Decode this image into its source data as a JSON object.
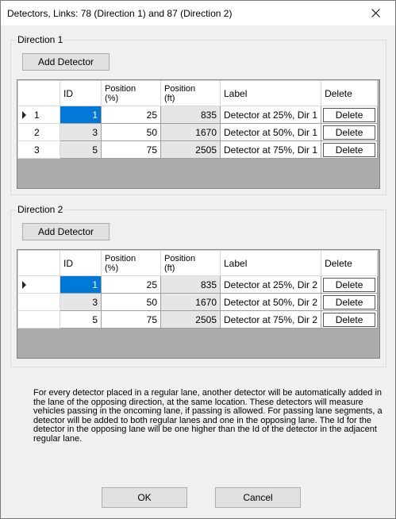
{
  "window": {
    "title": "Detectors, Links: 78 (Direction 1) and 87 (Direction 2)",
    "close_icon": "close-icon"
  },
  "direction1": {
    "group_label": "Direction 1",
    "add_button": "Add Detector",
    "columns": [
      "ID",
      "Position\n(%)",
      "Position\n(ft)",
      "Label",
      "Delete"
    ],
    "rows": [
      {
        "rownum": "1",
        "id": "1",
        "pos_pct": "25",
        "pos_ft": "835",
        "label": "Detector at 25%, Dir 1",
        "delete": "Delete"
      },
      {
        "rownum": "2",
        "id": "3",
        "pos_pct": "50",
        "pos_ft": "1670",
        "label": "Detector at 50%, Dir 1",
        "delete": "Delete"
      },
      {
        "rownum": "3",
        "id": "5",
        "pos_pct": "75",
        "pos_ft": "2505",
        "label": "Detector at 75%, Dir 1",
        "delete": "Delete"
      }
    ]
  },
  "direction2": {
    "group_label": "Direction 2",
    "add_button": "Add Detector",
    "columns": [
      "ID",
      "Position\n(%)",
      "Position\n(ft)",
      "Label",
      "Delete"
    ],
    "rows": [
      {
        "rownum": "",
        "id": "1",
        "pos_pct": "25",
        "pos_ft": "835",
        "label": "Detector at 25%, Dir 2",
        "delete": "Delete"
      },
      {
        "rownum": "",
        "id": "3",
        "pos_pct": "50",
        "pos_ft": "1670",
        "label": "Detector at 50%, Dir 2",
        "delete": "Delete"
      },
      {
        "rownum": "",
        "id": "5",
        "pos_pct": "75",
        "pos_ft": "2505",
        "label": "Detector at 75%, Dir 2",
        "delete": "Delete"
      }
    ]
  },
  "info_text": "For every detector placed in a regular lane, another detector will be automatically added in the lane of the opposing direction, at the same location.  These detectors will measure vehicles passing in the oncoming lane, if passing is allowed.  For passing lane segments, a detector will be added to both regular lanes and one in the opposing lane.  The Id for the detector in the opposing lane will be one higher than the Id of the detector in the adjacent regular lane.",
  "buttons": {
    "ok": "OK",
    "cancel": "Cancel"
  },
  "colors": {
    "selection": "#0078d7",
    "grid_background": "#ababab",
    "dialog_background": "#f0f0f0"
  }
}
